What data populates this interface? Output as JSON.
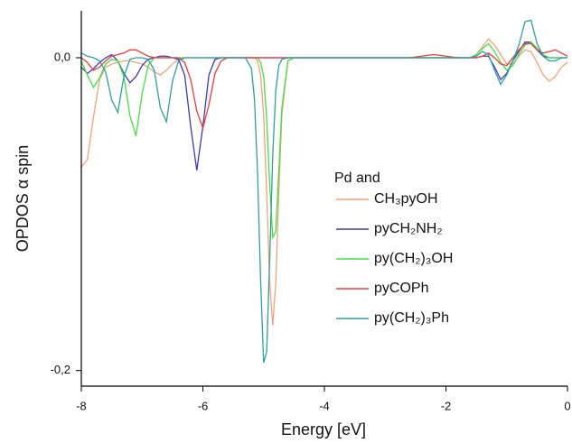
{
  "chart_data": {
    "type": "line",
    "xlabel": "Energy [eV]",
    "ylabel": "OPDOS α spin",
    "legend_title": "Pd and",
    "legend": "center-right",
    "xlim": [
      -8,
      0
    ],
    "ylim": [
      -0.21,
      0.03
    ],
    "xticks": [
      -8,
      -6,
      -4,
      -2,
      0
    ],
    "yticks": [
      {
        "value": -0.2,
        "label": "-0,2"
      },
      {
        "value": 0,
        "label": "0,0"
      }
    ],
    "x": [
      -8.0,
      -7.9,
      -7.8,
      -7.7,
      -7.6,
      -7.5,
      -7.4,
      -7.3,
      -7.2,
      -7.1,
      -7.0,
      -6.9,
      -6.8,
      -6.7,
      -6.6,
      -6.5,
      -6.4,
      -6.3,
      -6.2,
      -6.1,
      -6.0,
      -5.9,
      -5.8,
      -5.7,
      -5.6,
      -5.5,
      -5.4,
      -5.3,
      -5.2,
      -5.15,
      -5.1,
      -5.05,
      -5.0,
      -4.95,
      -4.9,
      -4.85,
      -4.8,
      -4.75,
      -4.7,
      -4.6,
      -4.5,
      -4.4,
      -4.2,
      -3.8,
      -3.4,
      -3.0,
      -2.6,
      -2.4,
      -2.2,
      -2.0,
      -1.8,
      -1.6,
      -1.5,
      -1.4,
      -1.3,
      -1.2,
      -1.1,
      -1.0,
      -0.9,
      -0.8,
      -0.7,
      -0.6,
      -0.5,
      -0.4,
      -0.3,
      -0.2,
      -0.1,
      0.0
    ],
    "series": [
      {
        "name": "CH₃pyOH",
        "color": "#f2a27a",
        "values": [
          -0.07,
          -0.065,
          -0.038,
          -0.014,
          -0.006,
          -0.004,
          -0.003,
          -0.002,
          -0.002,
          -0.003,
          -0.004,
          -0.006,
          -0.009,
          -0.011,
          -0.008,
          -0.004,
          -0.001,
          0,
          0,
          0,
          0,
          0,
          0,
          0,
          0,
          0,
          0,
          0,
          0,
          0,
          -0.002,
          -0.011,
          -0.036,
          -0.086,
          -0.144,
          -0.171,
          -0.144,
          -0.086,
          -0.036,
          -0.002,
          0,
          0,
          0,
          0,
          0,
          0,
          0,
          0,
          0,
          0,
          0,
          0,
          0.002,
          0.007,
          0.012,
          0.008,
          0.002,
          -0.004,
          -0.004,
          0.001,
          0.005,
          0.004,
          -0.003,
          -0.011,
          -0.015,
          -0.012,
          -0.006,
          -0.003
        ]
      },
      {
        "name": "pyCH₂NH₂",
        "color": "#3a3ab4",
        "values": [
          -0.006,
          -0.01,
          -0.007,
          -0.003,
          0,
          0.002,
          -0.002,
          -0.01,
          -0.016,
          -0.012,
          -0.005,
          -0.001,
          0,
          0.001,
          0.001,
          0,
          -0.001,
          -0.011,
          -0.044,
          -0.072,
          -0.044,
          -0.011,
          -0.001,
          0,
          0,
          0,
          0,
          0,
          0,
          0,
          0,
          0,
          0,
          0,
          0,
          0,
          0,
          0,
          0,
          0,
          0,
          0,
          0,
          0,
          0,
          0,
          0,
          0,
          0,
          0,
          0,
          0,
          0,
          0.001,
          0.001,
          -0.006,
          -0.014,
          -0.01,
          -0.002,
          0.004,
          0.01,
          0.01,
          0.005,
          0.001,
          0,
          0,
          0,
          0
        ]
      },
      {
        "name": "py(CH₂)₃OH",
        "color": "#44e044",
        "values": [
          -0.002,
          -0.011,
          -0.019,
          -0.013,
          -0.004,
          -0.001,
          -0.002,
          -0.012,
          -0.037,
          -0.05,
          -0.023,
          -0.005,
          0,
          0,
          0,
          0,
          0,
          0,
          0,
          0,
          0,
          0,
          0,
          0,
          0,
          0,
          0,
          0,
          0,
          0,
          0,
          -0.003,
          -0.012,
          -0.039,
          -0.081,
          -0.115,
          -0.111,
          -0.072,
          -0.032,
          -0.002,
          0,
          0,
          0,
          0,
          0,
          0,
          0,
          0,
          0,
          0,
          0,
          0,
          0.002,
          0.006,
          0.009,
          0.004,
          -0.003,
          -0.008,
          -0.005,
          0.002,
          0.008,
          0.01,
          0.006,
          0.002,
          0,
          0,
          0,
          0
        ]
      },
      {
        "name": "pyCOPh",
        "color": "#f03a3a",
        "values": [
          0,
          -0.003,
          -0.008,
          -0.006,
          -0.002,
          0.001,
          0.002,
          0.003,
          0.005,
          0.005,
          0.003,
          0.001,
          0,
          0,
          0,
          0,
          0,
          -0.003,
          -0.014,
          -0.034,
          -0.045,
          -0.03,
          -0.01,
          -0.002,
          0,
          0,
          0,
          0,
          0,
          0,
          0,
          0,
          0,
          0,
          0,
          0,
          0,
          0,
          0,
          0,
          0,
          0,
          0,
          0,
          0,
          0,
          0,
          0.001,
          0.002,
          0.001,
          0,
          0,
          0,
          0.001,
          0.003,
          0,
          -0.004,
          -0.005,
          0,
          0.005,
          0.009,
          0.009,
          0.005,
          0.003,
          0.004,
          0.005,
          0.003,
          0.001
        ]
      },
      {
        "name": "py(CH₂)₃Ph",
        "color": "#2fa0a0",
        "values": [
          0.003,
          0.001,
          0,
          -0.002,
          -0.009,
          -0.027,
          -0.035,
          -0.012,
          -0.001,
          0,
          0,
          -0.001,
          -0.008,
          -0.032,
          -0.041,
          -0.015,
          -0.002,
          0,
          0,
          0,
          0,
          0,
          0,
          0,
          0,
          0,
          0,
          0,
          -0.007,
          -0.027,
          -0.074,
          -0.142,
          -0.195,
          -0.188,
          -0.129,
          -0.062,
          -0.021,
          -0.005,
          -0.001,
          0,
          0,
          0,
          0,
          0,
          0,
          0,
          0,
          0,
          0,
          0,
          0,
          0,
          0.001,
          0.004,
          0.002,
          -0.008,
          -0.017,
          -0.011,
          -0.002,
          0.008,
          0.023,
          0.024,
          0.009,
          0.001,
          -0.002,
          -0.002,
          0,
          0
        ]
      }
    ]
  }
}
